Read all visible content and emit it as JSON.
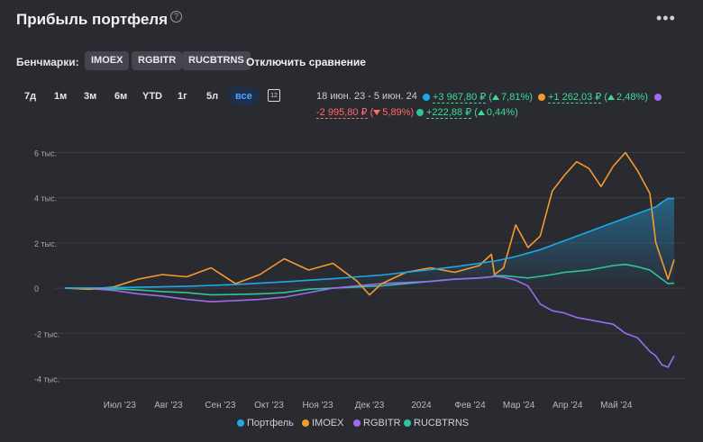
{
  "header": {
    "title": "Прибыль портфеля",
    "help_icon": "?",
    "menu_icon": "•••"
  },
  "benchmarks": {
    "label": "Бенчмарки:",
    "chips": [
      "IMOEX",
      "RGBITR",
      "RUCBTRNS"
    ],
    "disable_label": "Отключить сравнение"
  },
  "periods": [
    "7д",
    "1м",
    "3м",
    "6м",
    "YTD",
    "1г",
    "5л",
    "все"
  ],
  "active_period": "все",
  "calendar_icon_text": "12",
  "stats": {
    "range": "18 июн. 23 - 5 июн. 24",
    "portfolio": {
      "value": "+3 967,80 ₽",
      "pct": "7,81%",
      "color": "#1fa8e8"
    },
    "imoex": {
      "value": "+1 262,03 ₽",
      "pct": "2,48%",
      "color": "#f79a2e"
    },
    "rgbitr": {
      "value": "-2 995,80 ₽",
      "pct": "5,89%",
      "color": "#9b6bf2"
    },
    "rucbtrns": {
      "value": "+222,88 ₽",
      "pct": "0,44%",
      "color": "#2ec4a0"
    }
  },
  "chart_data": {
    "type": "line",
    "ylim": [
      -4300,
      6300
    ],
    "yticks": [
      6000,
      4000,
      2000,
      0,
      -2000,
      -4000
    ],
    "ytick_labels": [
      "6 тыс.",
      "4 тыс.",
      "2 тыс.",
      "0",
      "-2 тыс.",
      "-4 тыс."
    ],
    "x_labels": [
      "Июл '23",
      "Авг '23",
      "Сен '23",
      "Окт '23",
      "Ноя '23",
      "Дек '23",
      "2024",
      "Фев '24",
      "Мар '24",
      "Апр '24",
      "Май '24"
    ],
    "x_label_pos": [
      0.09,
      0.17,
      0.255,
      0.335,
      0.415,
      0.5,
      0.585,
      0.665,
      0.745,
      0.825,
      0.905
    ],
    "x_positions": [
      0,
      0.04,
      0.08,
      0.12,
      0.16,
      0.2,
      0.24,
      0.28,
      0.32,
      0.36,
      0.4,
      0.44,
      0.48,
      0.5,
      0.52,
      0.56,
      0.6,
      0.64,
      0.68,
      0.7,
      0.705,
      0.72,
      0.74,
      0.76,
      0.78,
      0.8,
      0.82,
      0.84,
      0.86,
      0.88,
      0.9,
      0.92,
      0.94,
      0.96,
      0.97,
      0.98,
      0.99,
      1.0
    ],
    "grid": true,
    "series": [
      {
        "name": "Портфель",
        "color": "#1fa8e8",
        "values": [
          0,
          5,
          20,
          40,
          60,
          80,
          120,
          160,
          220,
          280,
          350,
          420,
          500,
          540,
          580,
          700,
          820,
          950,
          1100,
          1180,
          1200,
          1280,
          1400,
          1550,
          1700,
          1900,
          2100,
          2300,
          2500,
          2700,
          2900,
          3100,
          3300,
          3500,
          3600,
          3800,
          3967,
          3967
        ]
      },
      {
        "name": "IMOEX",
        "color": "#f79a2e",
        "values": [
          0,
          -50,
          50,
          400,
          600,
          500,
          900,
          200,
          600,
          1300,
          800,
          1100,
          300,
          -300,
          200,
          700,
          900,
          700,
          1000,
          1500,
          600,
          900,
          2800,
          1800,
          2300,
          4300,
          5000,
          5600,
          5300,
          4500,
          5400,
          6000,
          5200,
          4200,
          2000,
          1200,
          400,
          1262
        ]
      },
      {
        "name": "RGBITR",
        "color": "#9b6bf2",
        "values": [
          0,
          -20,
          -100,
          -250,
          -350,
          -500,
          -600,
          -550,
          -500,
          -400,
          -200,
          0,
          100,
          150,
          200,
          250,
          300,
          400,
          450,
          500,
          520,
          480,
          350,
          100,
          -700,
          -1000,
          -1100,
          -1300,
          -1400,
          -1500,
          -1600,
          -2000,
          -2200,
          -2800,
          -3000,
          -3400,
          -3500,
          -2996
        ]
      },
      {
        "name": "RUCBTRNS",
        "color": "#2ec4a0",
        "values": [
          0,
          0,
          -30,
          -80,
          -150,
          -200,
          -300,
          -280,
          -250,
          -200,
          -50,
          0,
          50,
          80,
          100,
          200,
          300,
          400,
          450,
          500,
          550,
          550,
          500,
          450,
          520,
          600,
          700,
          750,
          800,
          900,
          1000,
          1050,
          950,
          800,
          600,
          400,
          200,
          223
        ]
      }
    ]
  },
  "legend": [
    "Портфель",
    "IMOEX",
    "RGBITR",
    "RUCBTRNS"
  ]
}
